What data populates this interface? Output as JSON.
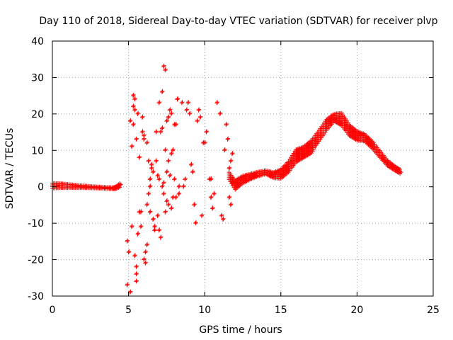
{
  "chart_data": {
    "type": "scatter",
    "title": "Day 110 of 2018, Sidereal Day-to-day VTEC variation (SDTVAR) for receiver plvp",
    "xlabel": "GPS time / hours",
    "ylabel": "SDTVAR / TECUs",
    "xlim": [
      0,
      25
    ],
    "ylim": [
      -30,
      40
    ],
    "x_ticks": [
      0,
      5,
      10,
      15,
      20,
      25
    ],
    "x_tick_labels": [
      "0",
      "5",
      "10",
      "15",
      "20",
      "25"
    ],
    "y_ticks": [
      -30,
      -20,
      -10,
      0,
      10,
      20,
      30,
      40
    ],
    "y_tick_labels": [
      "-30",
      "-20",
      "-10",
      "0",
      "10",
      "20",
      "30",
      "40"
    ],
    "grid": true,
    "marker": "+",
    "series": [
      {
        "name": "SDTVAR plvp",
        "color": "#ff0000",
        "segments": [
          {
            "x": [
              0,
              0.5,
              1,
              1.5,
              2,
              2.5,
              3,
              3.5,
              4,
              4.2,
              4.5
            ],
            "y_center": [
              0.3,
              0.3,
              0.2,
              0.1,
              0.0,
              -0.1,
              -0.2,
              -0.3,
              -0.4,
              -0.2,
              0.6
            ],
            "y_spread": [
              1.4,
              1.2,
              1.0,
              0.8,
              0.6,
              0.5,
              0.4,
              0.4,
              0.4,
              0.6,
              1.2
            ]
          },
          {
            "x": [
              11.6,
              12.0,
              12.5,
              13.0,
              13.5,
              14.0,
              14.5,
              15.0,
              15.5,
              16.0,
              16.5,
              17.0,
              17.5,
              18.0,
              18.5,
              19.0,
              19.5,
              20.0,
              20.5,
              21.0,
              21.5,
              22.0,
              22.5,
              22.9
            ],
            "y_center": [
              3.0,
              0.5,
              2.0,
              2.8,
              3.5,
              4.0,
              3.2,
              3.5,
              5.5,
              8.5,
              9.5,
              11.0,
              14.0,
              17.0,
              19.0,
              18.5,
              15.5,
              14.0,
              13.5,
              11.5,
              9.0,
              6.5,
              5.0,
              4.0
            ],
            "y_spread": [
              2.0,
              2.5,
              2.0,
              1.5,
              1.2,
              1.0,
              1.5,
              2.5,
              3.0,
              3.5,
              3.0,
              3.5,
              3.0,
              3.0,
              2.0,
              3.5,
              3.0,
              2.5,
              2.0,
              2.0,
              1.8,
              1.5,
              1.2,
              1.2
            ]
          }
        ],
        "scatter_points": [
          [
            4.9,
            -15
          ],
          [
            4.9,
            -27
          ],
          [
            5.0,
            -18
          ],
          [
            5.1,
            -29
          ],
          [
            5.1,
            18
          ],
          [
            5.2,
            11
          ],
          [
            5.2,
            -11
          ],
          [
            5.3,
            25
          ],
          [
            5.3,
            22
          ],
          [
            5.3,
            17
          ],
          [
            5.4,
            24
          ],
          [
            5.4,
            21
          ],
          [
            5.4,
            -19
          ],
          [
            5.5,
            -24
          ],
          [
            5.5,
            -26
          ],
          [
            5.5,
            -22
          ],
          [
            5.5,
            13
          ],
          [
            5.6,
            20
          ],
          [
            5.6,
            -13
          ],
          [
            5.7,
            -7
          ],
          [
            5.7,
            8
          ],
          [
            5.8,
            -7
          ],
          [
            5.8,
            -11
          ],
          [
            5.9,
            19
          ],
          [
            5.9,
            15
          ],
          [
            6.0,
            14
          ],
          [
            6.0,
            13
          ],
          [
            6.0,
            -20
          ],
          [
            6.1,
            -21
          ],
          [
            6.1,
            -18
          ],
          [
            6.2,
            12
          ],
          [
            6.2,
            -16
          ],
          [
            6.2,
            -5
          ],
          [
            6.3,
            -2
          ],
          [
            6.3,
            7
          ],
          [
            6.4,
            -7
          ],
          [
            6.4,
            2
          ],
          [
            6.4,
            0
          ],
          [
            6.5,
            6
          ],
          [
            6.5,
            5
          ],
          [
            6.6,
            4
          ],
          [
            6.6,
            -9
          ],
          [
            6.7,
            -12
          ],
          [
            6.7,
            -11
          ],
          [
            6.8,
            7
          ],
          [
            6.8,
            15
          ],
          [
            6.9,
            3
          ],
          [
            6.9,
            -8
          ],
          [
            7.0,
            23
          ],
          [
            7.0,
            2
          ],
          [
            7.0,
            -12
          ],
          [
            7.1,
            15
          ],
          [
            7.1,
            -14
          ],
          [
            7.2,
            26
          ],
          [
            7.2,
            16
          ],
          [
            7.2,
            0
          ],
          [
            7.3,
            33
          ],
          [
            7.3,
            1
          ],
          [
            7.3,
            -2
          ],
          [
            7.4,
            32
          ],
          [
            7.4,
            10
          ],
          [
            7.4,
            -7
          ],
          [
            7.5,
            4
          ],
          [
            7.5,
            -4
          ],
          [
            7.5,
            18
          ],
          [
            7.6,
            19
          ],
          [
            7.6,
            7
          ],
          [
            7.6,
            -5
          ],
          [
            7.7,
            3
          ],
          [
            7.7,
            21
          ],
          [
            7.8,
            20
          ],
          [
            7.8,
            -6
          ],
          [
            7.8,
            9
          ],
          [
            7.9,
            -3
          ],
          [
            7.9,
            10
          ],
          [
            8.0,
            2
          ],
          [
            8.0,
            17
          ],
          [
            8.1,
            17
          ],
          [
            8.1,
            -3
          ],
          [
            8.2,
            24
          ],
          [
            8.2,
            24
          ],
          [
            8.3,
            0
          ],
          [
            8.3,
            -2
          ],
          [
            8.5,
            23
          ],
          [
            8.6,
            0
          ],
          [
            8.7,
            2
          ],
          [
            8.8,
            21
          ],
          [
            8.9,
            23
          ],
          [
            9.0,
            20
          ],
          [
            9.1,
            6
          ],
          [
            9.2,
            4
          ],
          [
            9.3,
            -5
          ],
          [
            9.4,
            -10
          ],
          [
            9.5,
            18
          ],
          [
            9.6,
            21
          ],
          [
            9.7,
            19
          ],
          [
            9.8,
            -8
          ],
          [
            9.9,
            12
          ],
          [
            10.0,
            12
          ],
          [
            10.1,
            15
          ],
          [
            10.3,
            2
          ],
          [
            10.4,
            2
          ],
          [
            10.4,
            -3
          ],
          [
            10.5,
            -6
          ],
          [
            10.6,
            -2
          ],
          [
            10.8,
            23
          ],
          [
            11.0,
            20
          ],
          [
            11.1,
            -8
          ],
          [
            11.2,
            -9
          ],
          [
            11.3,
            10
          ],
          [
            11.4,
            17
          ],
          [
            11.5,
            13
          ],
          [
            11.6,
            5
          ],
          [
            11.6,
            -3
          ],
          [
            11.7,
            7
          ],
          [
            11.7,
            -5
          ],
          [
            11.8,
            9
          ],
          [
            11.8,
            1
          ]
        ]
      }
    ]
  }
}
